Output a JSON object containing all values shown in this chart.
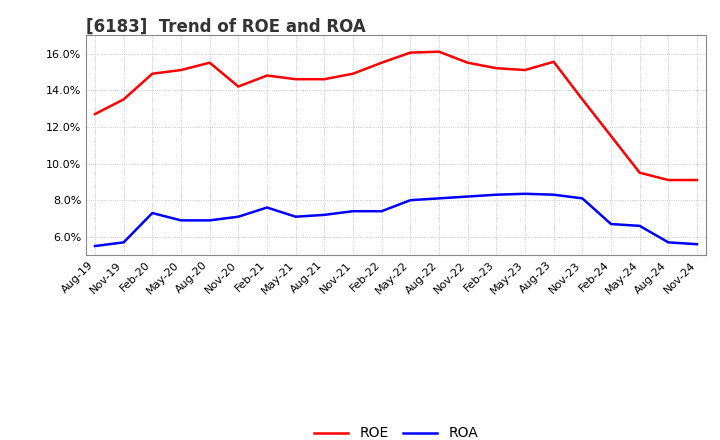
{
  "title": "[6183]  Trend of ROE and ROA",
  "x_labels": [
    "Aug-19",
    "Nov-19",
    "Feb-20",
    "May-20",
    "Aug-20",
    "Nov-20",
    "Feb-21",
    "May-21",
    "Aug-21",
    "Nov-21",
    "Feb-22",
    "May-22",
    "Aug-22",
    "Nov-22",
    "Feb-23",
    "May-23",
    "Aug-23",
    "Nov-23",
    "Feb-24",
    "May-24",
    "Aug-24",
    "Nov-24"
  ],
  "roe": [
    12.7,
    13.5,
    14.9,
    15.1,
    15.5,
    14.2,
    14.8,
    14.6,
    14.6,
    14.9,
    15.5,
    16.05,
    16.1,
    15.5,
    15.2,
    15.1,
    15.55,
    13.5,
    11.5,
    9.5,
    9.1,
    9.1
  ],
  "roa": [
    5.5,
    5.7,
    7.3,
    6.9,
    6.9,
    7.1,
    7.6,
    7.1,
    7.2,
    7.4,
    7.4,
    8.0,
    8.1,
    8.2,
    8.3,
    8.35,
    8.3,
    8.1,
    6.7,
    6.6,
    5.7,
    5.6
  ],
  "roe_color": "#FF0000",
  "roa_color": "#0000FF",
  "bg_color": "#FFFFFF",
  "plot_bg_color": "#FFFFFF",
  "grid_color": "#BBBBBB",
  "ylim": [
    5.0,
    17.0
  ],
  "yticks": [
    6.0,
    8.0,
    10.0,
    12.0,
    14.0,
    16.0
  ],
  "line_width": 1.8,
  "title_fontsize": 12,
  "tick_fontsize": 8,
  "legend_fontsize": 10
}
